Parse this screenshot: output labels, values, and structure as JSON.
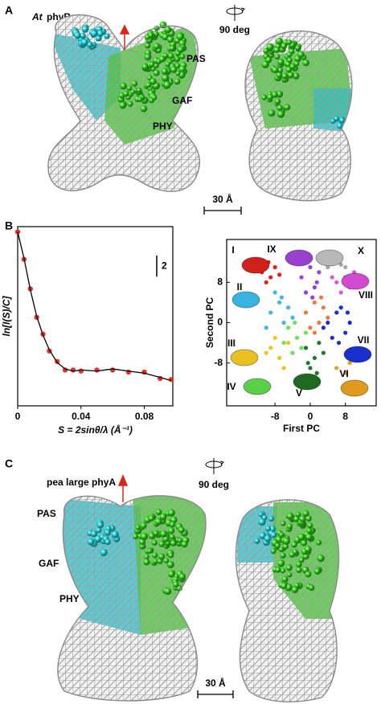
{
  "panel_a": {
    "label": "A",
    "species": "At",
    "protein": "phyB",
    "domains": [
      "PAS",
      "GAF",
      "PHY"
    ],
    "rotation": "90 deg",
    "scale": "30 Å"
  },
  "panel_b": {
    "label": "B"
  },
  "panel_c": {
    "label": "C",
    "title": "pea large phyA",
    "domains": [
      "PAS",
      "GAF",
      "PHY"
    ],
    "rotation": "90 deg",
    "scale": "30 Å"
  },
  "chart_data": [
    {
      "type": "line",
      "xlabel": "S = 2sinθ/λ (Å⁻¹)",
      "ylabel": "ln[I(S)/C]",
      "scale_bar": 2,
      "x": [
        0,
        0.004,
        0.008,
        0.012,
        0.016,
        0.02,
        0.025,
        0.03,
        0.035,
        0.04,
        0.05,
        0.06,
        0.07,
        0.08,
        0.09,
        0.097
      ],
      "series": [
        {
          "color": "#e8302a",
          "mode": "markers",
          "values": [
            0,
            -2.6,
            -5.4,
            -8.1,
            -9.7,
            -11.3,
            -12.3,
            -13.1,
            -13.1,
            -13.2,
            -13.1,
            -13.1,
            -13.3,
            -13.3,
            -13.9,
            -14
          ]
        },
        {
          "color": "#000000",
          "mode": "line",
          "values": [
            0,
            -2.5,
            -5.5,
            -8,
            -9.8,
            -11.2,
            -12.4,
            -13,
            -13.2,
            -13.1,
            -13.2,
            -13,
            -13.2,
            -13.4,
            -13.8,
            -14.1
          ]
        }
      ],
      "xlim": [
        0,
        0.098
      ],
      "xticks": [
        0,
        0.04,
        0.08
      ],
      "ylim": [
        -16.5,
        0.5
      ]
    },
    {
      "type": "scatter",
      "xlabel": "First PC",
      "ylabel": "Second PC",
      "xlim": [
        -19,
        15
      ],
      "ylim": [
        -16.5,
        16.5
      ],
      "xticks": [
        -8,
        0,
        8
      ],
      "yticks": [
        -8,
        0,
        8
      ],
      "cluster_labels": [
        "I",
        "II",
        "III",
        "IV",
        "V",
        "VI",
        "VII",
        "VIII",
        "IX",
        "X"
      ],
      "series": [
        {
          "color": "#e0201b",
          "x": [
            -11,
            -9,
            -8,
            -10,
            -7,
            -9.5
          ],
          "values": [
            10,
            9,
            11,
            8,
            9.5,
            12
          ]
        },
        {
          "color": "#9b3fd6",
          "x": [
            -2,
            0,
            1,
            2,
            -1,
            3,
            1.5,
            0.5
          ],
          "values": [
            9,
            11,
            7,
            10,
            6,
            12,
            8,
            5
          ]
        },
        {
          "color": "#a8a8a8",
          "x": [
            4,
            6,
            7,
            5,
            8
          ],
          "values": [
            11,
            12,
            11.5,
            12.5,
            11
          ]
        },
        {
          "color": "#e055e0",
          "x": [
            6,
            8,
            9,
            7,
            10,
            5
          ],
          "values": [
            8,
            9,
            7,
            6,
            10,
            9
          ]
        },
        {
          "color": "#3cb8e8",
          "x": [
            -9,
            -7,
            -6,
            -8,
            -5,
            -4,
            -10,
            -6.5
          ],
          "values": [
            2,
            4,
            0,
            6,
            3,
            1,
            -1,
            5
          ]
        },
        {
          "color": "#f07a3a",
          "x": [
            -1,
            1,
            2,
            3,
            0,
            4,
            2.5,
            1
          ],
          "values": [
            2,
            4,
            0,
            3,
            -1,
            1,
            5,
            -2
          ]
        },
        {
          "color": "#1a2fd0",
          "x": [
            4,
            6,
            8,
            5,
            7,
            9,
            3,
            6.5,
            8.5
          ],
          "values": [
            0,
            2,
            -2,
            -3,
            3,
            0,
            -1,
            -4,
            2
          ]
        },
        {
          "color": "#f2c21b",
          "x": [
            -9,
            -7,
            -8,
            -6,
            -10,
            -5
          ],
          "values": [
            -5,
            -7,
            -3,
            -9,
            -6,
            -4
          ]
        },
        {
          "color": "#6ee05a",
          "x": [
            -5,
            -3,
            -2,
            -4,
            -1,
            -6,
            -3.5
          ],
          "values": [
            -1,
            -3,
            -5,
            -6,
            -2,
            -4,
            0
          ]
        },
        {
          "color": "#1e7a2a",
          "x": [
            -1,
            1,
            2,
            0,
            3,
            1.5,
            -0.5
          ],
          "values": [
            -5,
            -7,
            -4,
            -9,
            -6,
            -10,
            -8
          ]
        },
        {
          "color": "#e8a020",
          "x": [
            6,
            8,
            9
          ],
          "values": [
            -9,
            -10,
            -8
          ]
        }
      ]
    }
  ]
}
